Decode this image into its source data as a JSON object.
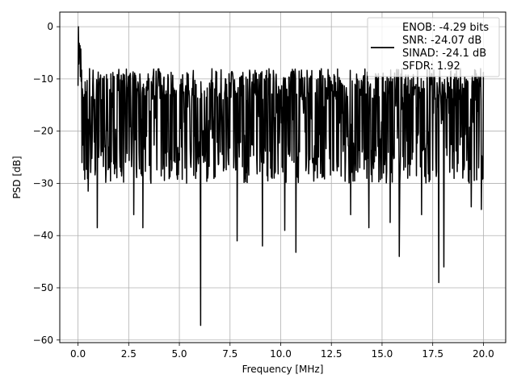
{
  "chart_data": {
    "type": "line",
    "title": "",
    "xlabel": "Frequency [MHz]",
    "ylabel": "PSD [dB]",
    "xlim": [
      -0.9,
      21.1
    ],
    "ylim": [
      -60.5,
      2.8
    ],
    "xticks": [
      0.0,
      2.5,
      5.0,
      7.5,
      10.0,
      12.5,
      15.0,
      17.5,
      20.0
    ],
    "xtick_labels": [
      "0.0",
      "2.5",
      "5.0",
      "7.5",
      "10.0",
      "12.5",
      "15.0",
      "17.5",
      "20.0"
    ],
    "yticks": [
      0,
      -10,
      -20,
      -30,
      -40,
      -50,
      -60
    ],
    "ytick_labels": [
      "0",
      "−10",
      "−20",
      "−30",
      "−40",
      "−50",
      "−60"
    ],
    "grid": true,
    "legend_position": "top-right",
    "series": [
      {
        "color": "#000000",
        "x_start": 0.0,
        "x_end": 20.0,
        "n_points": 1024,
        "peak": {
          "x": 0.02,
          "y": 0
        },
        "typical_max": -8,
        "typical_min": -30,
        "dips": [
          {
            "x": 0.5,
            "y": -31.5
          },
          {
            "x": 0.95,
            "y": -38.5
          },
          {
            "x": 2.75,
            "y": -36
          },
          {
            "x": 3.2,
            "y": -38.5
          },
          {
            "x": 6.05,
            "y": -57.2
          },
          {
            "x": 7.85,
            "y": -41
          },
          {
            "x": 9.1,
            "y": -42
          },
          {
            "x": 10.2,
            "y": -39
          },
          {
            "x": 10.75,
            "y": -43.2
          },
          {
            "x": 13.45,
            "y": -36
          },
          {
            "x": 14.35,
            "y": -38.5
          },
          {
            "x": 15.4,
            "y": -37.5
          },
          {
            "x": 15.85,
            "y": -44
          },
          {
            "x": 16.95,
            "y": -36
          },
          {
            "x": 17.8,
            "y": -49
          },
          {
            "x": 18.05,
            "y": -46
          },
          {
            "x": 19.4,
            "y": -34.5
          },
          {
            "x": 19.9,
            "y": -35
          }
        ]
      }
    ],
    "legend_lines": [
      "ENOB: -4.29 bits",
      "SNR: -24.07 dB",
      "SINAD: -24.1 dB",
      "SFDR: 1.92"
    ]
  }
}
